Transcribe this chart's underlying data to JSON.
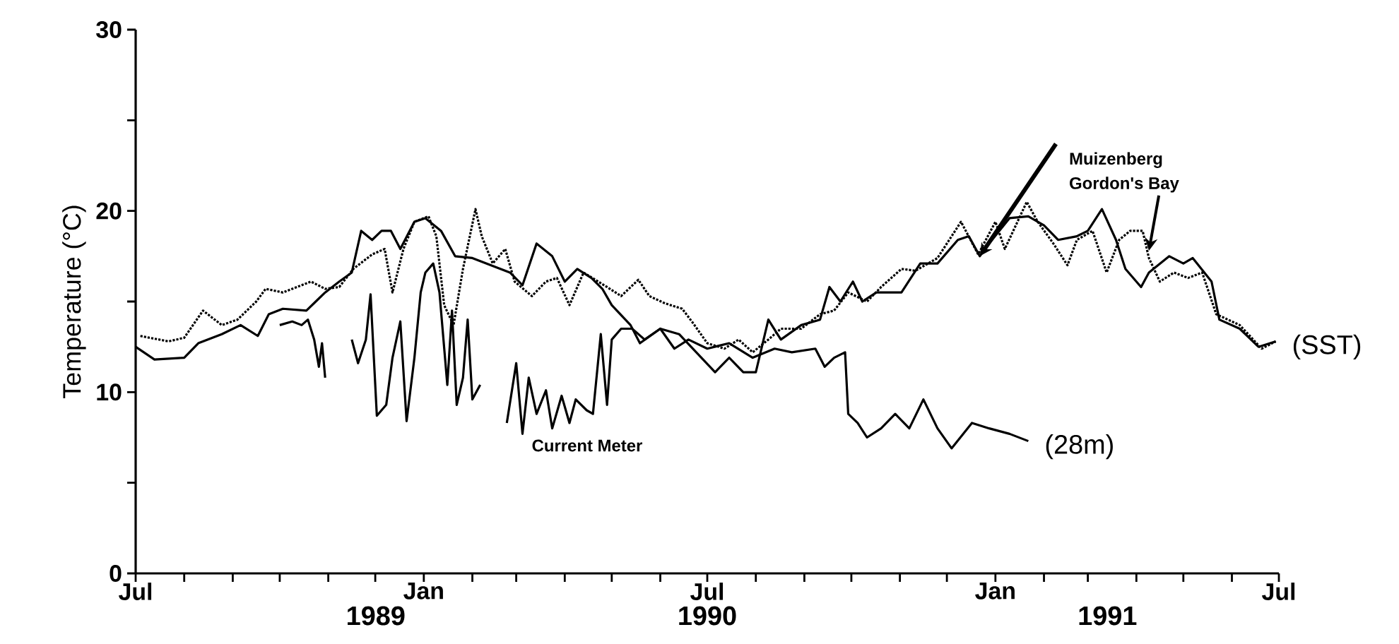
{
  "chart_data": {
    "type": "line",
    "ylabel": "Temperature (°C)",
    "xlim": [
      "1989-07-01",
      "1991-07-01"
    ],
    "xticks": [
      {
        "value": "1989-07-01",
        "label": "Jul"
      },
      {
        "value": "1989-08-01",
        "label": null
      },
      {
        "value": "1989-09-01",
        "label": null
      },
      {
        "value": "1989-10-01",
        "label": null
      },
      {
        "value": "1989-11-01",
        "label": null
      },
      {
        "value": "1989-12-01",
        "label": null
      },
      {
        "value": "1990-01-01",
        "label": "Jan"
      },
      {
        "value": "1990-02-01",
        "label": null
      },
      {
        "value": "1990-03-01",
        "label": null
      },
      {
        "value": "1990-04-01",
        "label": null
      },
      {
        "value": "1990-05-01",
        "label": null
      },
      {
        "value": "1990-06-01",
        "label": null
      },
      {
        "value": "1990-07-01",
        "label": "Jul"
      },
      {
        "value": "1990-08-01",
        "label": null
      },
      {
        "value": "1990-09-01",
        "label": null
      },
      {
        "value": "1990-10-01",
        "label": null
      },
      {
        "value": "1990-11-01",
        "label": null
      },
      {
        "value": "1990-12-01",
        "label": null
      },
      {
        "value": "1991-01-01",
        "label": "Jan"
      },
      {
        "value": "1991-02-01",
        "label": null
      },
      {
        "value": "1991-03-01",
        "label": null
      },
      {
        "value": "1991-04-01",
        "label": null
      },
      {
        "value": "1991-05-01",
        "label": null
      },
      {
        "value": "1991-06-01",
        "label": null
      },
      {
        "value": "1991-07-01",
        "label": "Jul"
      }
    ],
    "ylim": [
      0,
      30
    ],
    "yticks": [
      0,
      {
        "value": 5,
        "label": null
      },
      10,
      {
        "value": 15,
        "label": null
      },
      20,
      {
        "value": 25,
        "label": null
      },
      30
    ],
    "annotations": [
      "1989",
      "1990",
      "1991",
      {
        "text": "(SST)",
        "x": "1991-06-29",
        "y": 12.8
      },
      {
        "text": "(28m)",
        "x": "1991-01-22",
        "y": 7.3
      }
    ],
    "series": [
      {
        "name": "Muizenberg",
        "color": "#000000",
        "line_style": "solid",
        "x": [
          "1989-07-01",
          "1989-07-13",
          "1989-08-01",
          "1989-08-10",
          "1989-08-25",
          "1989-09-06",
          "1989-09-17",
          "1989-09-24",
          "1989-10-03",
          "1989-10-18",
          "1989-10-24",
          "1989-10-30",
          "1989-11-08",
          "1989-11-16",
          "1989-11-22",
          "1989-11-29",
          "1989-12-05",
          "1989-12-11",
          "1989-12-17",
          "1989-12-26",
          "1990-01-02",
          "1990-01-12",
          "1990-01-21",
          "1990-02-01",
          "1990-02-13",
          "1990-02-25",
          "1990-03-05",
          "1990-03-14",
          "1990-03-24",
          "1990-04-01",
          "1990-04-09",
          "1990-04-18",
          "1990-04-25",
          "1990-05-01",
          "1990-05-13",
          "1990-05-19",
          "1990-06-01",
          "1990-06-13",
          "1990-07-06",
          "1990-07-15",
          "1990-07-24",
          "1990-08-01",
          "1990-08-09",
          "1990-08-17",
          "1990-08-30",
          "1990-09-11",
          "1990-09-17",
          "1990-09-24",
          "1990-10-02",
          "1990-10-08",
          "1990-10-17",
          "1990-11-02",
          "1990-11-14",
          "1990-11-25",
          "1990-12-08",
          "1990-12-15",
          "1990-12-22",
          "1990-12-28",
          "1991-01-10",
          "1991-01-22",
          "1991-02-01",
          "1991-02-10",
          "1991-02-22",
          "1991-03-01",
          "1991-03-10",
          "1991-03-19",
          "1991-03-25",
          "1991-04-04",
          "1991-04-09",
          "1991-04-22",
          "1991-05-01",
          "1991-05-07",
          "1991-05-19",
          "1991-05-24",
          "1991-06-06",
          "1991-06-18",
          "1991-06-29"
        ],
        "values": [
          12.5,
          11.8,
          11.9,
          12.7,
          13.2,
          13.7,
          13.1,
          14.3,
          14.6,
          14.5,
          15.0,
          15.5,
          16.1,
          16.6,
          18.9,
          18.4,
          18.9,
          18.9,
          17.9,
          19.4,
          19.6,
          18.9,
          17.5,
          17.4,
          17.0,
          16.6,
          15.9,
          18.2,
          17.5,
          16.1,
          16.8,
          16.3,
          15.7,
          14.8,
          13.7,
          12.7,
          13.5,
          13.2,
          11.1,
          11.9,
          11.1,
          11.1,
          14.0,
          12.9,
          13.7,
          14.0,
          15.8,
          15.0,
          16.1,
          15.0,
          15.5,
          15.5,
          17.1,
          17.1,
          18.4,
          18.6,
          17.5,
          18.2,
          19.6,
          19.7,
          19.2,
          18.4,
          18.6,
          18.9,
          20.1,
          18.4,
          16.8,
          15.8,
          16.6,
          17.5,
          17.1,
          17.4,
          16.1,
          14.0,
          13.5,
          12.5,
          12.8
        ]
      },
      {
        "name": "Gordon's Bay",
        "color": "#000000",
        "line_style": "dotted",
        "x": [
          "1989-07-04",
          "1989-07-22",
          "1989-08-01",
          "1989-08-13",
          "1989-08-25",
          "1989-09-04",
          "1989-09-16",
          "1989-09-22",
          "1989-10-03",
          "1989-10-12",
          "1989-10-21",
          "1989-10-30",
          "1989-11-08",
          "1989-11-17",
          "1989-11-29",
          "1989-12-07",
          "1989-12-12",
          "1989-12-19",
          "1989-12-26",
          "1990-01-04",
          "1990-01-09",
          "1990-01-14",
          "1990-01-20",
          "1990-01-26",
          "1990-02-03",
          "1990-02-07",
          "1990-02-14",
          "1990-02-22",
          "1990-02-28",
          "1990-03-11",
          "1990-03-20",
          "1990-03-27",
          "1990-04-04",
          "1990-04-13",
          "1990-04-28",
          "1990-05-07",
          "1990-05-18",
          "1990-05-25",
          "1990-06-04",
          "1990-06-15",
          "1990-06-22",
          "1990-07-01",
          "1990-07-12",
          "1990-07-21",
          "1990-07-30",
          "1990-08-09",
          "1990-08-17",
          "1990-08-30",
          "1990-09-11",
          "1990-09-20",
          "1990-09-29",
          "1990-10-11",
          "1990-10-20",
          "1990-11-02",
          "1990-11-11",
          "1990-11-25",
          "1990-12-10",
          "1990-12-21",
          "1991-01-01",
          "1991-01-07",
          "1991-01-21",
          "1991-01-28",
          "1991-02-07",
          "1991-02-16",
          "1991-02-22",
          "1991-03-04",
          "1991-03-13",
          "1991-03-21",
          "1991-03-28",
          "1991-04-05",
          "1991-04-09",
          "1991-04-16",
          "1991-04-25",
          "1991-05-04",
          "1991-05-13",
          "1991-05-22",
          "1991-06-06",
          "1991-06-20",
          "1991-06-29"
        ],
        "values": [
          13.1,
          12.8,
          13.0,
          14.5,
          13.7,
          14.0,
          15.0,
          15.7,
          15.5,
          15.8,
          16.1,
          15.7,
          15.8,
          16.8,
          17.6,
          17.9,
          15.5,
          17.9,
          19.4,
          19.7,
          18.6,
          14.8,
          13.7,
          16.8,
          20.1,
          18.6,
          17.1,
          17.9,
          16.1,
          15.3,
          16.1,
          16.3,
          14.8,
          16.6,
          15.8,
          15.3,
          16.2,
          15.3,
          14.9,
          14.6,
          13.8,
          12.7,
          12.4,
          12.9,
          12.2,
          12.9,
          13.5,
          13.5,
          14.3,
          14.5,
          15.5,
          15.0,
          15.8,
          16.8,
          16.7,
          17.4,
          19.4,
          17.6,
          19.4,
          17.9,
          20.5,
          19.4,
          18.2,
          17.0,
          18.4,
          18.9,
          16.6,
          18.4,
          18.9,
          18.9,
          17.4,
          16.1,
          16.6,
          16.3,
          16.6,
          14.3,
          13.7,
          12.4,
          12.8
        ]
      },
      {
        "name": "Current Meter",
        "color": "#000000",
        "line_style": "solid",
        "x": [
          "1989-10-01",
          "1989-10-09",
          "1989-10-15",
          "1989-10-19",
          "1989-10-23",
          "1989-10-26",
          "1989-10-28",
          "1989-10-30",
          "1989-11-08",
          "1989-11-16",
          "1989-11-20",
          "1989-11-25",
          "1989-11-28",
          "1989-12-02",
          "1989-12-08",
          "1989-12-12",
          "1989-12-17",
          "1989-12-21",
          "1989-12-26",
          "1989-12-30",
          "1990-01-02",
          "1990-01-07",
          "1990-01-11",
          "1990-01-16",
          "1990-01-19",
          "1990-01-22",
          "1990-01-26",
          "1990-01-29",
          "1990-02-01",
          "1990-02-06",
          "1990-02-15",
          "1990-02-23",
          "1990-03-01",
          "1990-03-05",
          "1990-03-09",
          "1990-03-14",
          "1990-03-20",
          "1990-03-24",
          "1990-03-30",
          "1990-04-04",
          "1990-04-08",
          "1990-04-15",
          "1990-04-19",
          "1990-04-24",
          "1990-04-28",
          "1990-05-01",
          "1990-05-07",
          "1990-05-14",
          "1990-05-22",
          "1990-06-01",
          "1990-06-10",
          "1990-06-19",
          "1990-07-01",
          "1990-07-15",
          "1990-07-30",
          "1990-08-13",
          "1990-08-24",
          "1990-09-08",
          "1990-09-14",
          "1990-09-20",
          "1990-09-27",
          "1990-09-29",
          "1990-10-05",
          "1990-10-11",
          "1990-10-20",
          "1990-10-29",
          "1990-11-07",
          "1990-11-16",
          "1990-11-25",
          "1990-12-04",
          "1990-12-17",
          "1990-12-28",
          "1991-01-10",
          "1991-01-22"
        ],
        "values": [
          13.7,
          13.9,
          13.7,
          14.0,
          12.9,
          11.4,
          12.7,
          10.8,
          null,
          12.9,
          11.6,
          12.9,
          15.4,
          8.7,
          9.3,
          11.9,
          13.9,
          8.4,
          11.9,
          15.5,
          16.6,
          17.1,
          15.5,
          10.4,
          14.5,
          9.3,
          10.8,
          14.0,
          9.6,
          10.4,
          null,
          8.3,
          11.6,
          7.7,
          10.8,
          8.8,
          10.1,
          8.0,
          9.8,
          8.3,
          9.6,
          9.0,
          8.8,
          13.2,
          9.3,
          12.9,
          13.5,
          13.5,
          12.9,
          13.5,
          12.4,
          12.9,
          12.4,
          12.7,
          11.9,
          12.4,
          12.2,
          12.4,
          11.4,
          11.9,
          12.2,
          8.8,
          8.3,
          7.5,
          8.0,
          8.8,
          8.0,
          9.6,
          8.0,
          6.9,
          8.3,
          8.0,
          7.7,
          7.3
        ]
      }
    ]
  }
}
